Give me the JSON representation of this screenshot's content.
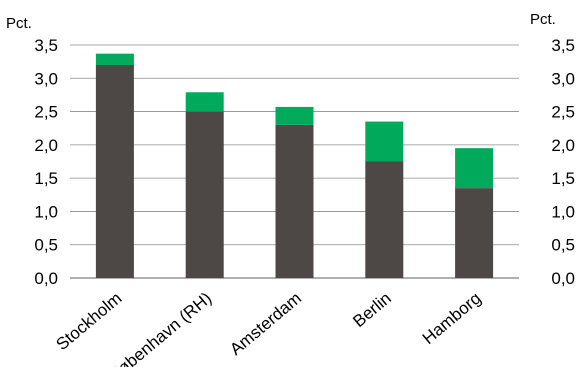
{
  "chart_data": {
    "type": "bar",
    "stacked": true,
    "title": "",
    "xlabel": "",
    "ylabel_left": "Pct.",
    "ylabel_right": "Pct.",
    "ylim": [
      0,
      3.5
    ],
    "yticks": [
      "0,0",
      "0,5",
      "1,0",
      "1,5",
      "2,0",
      "2,5",
      "3,0",
      "3,5"
    ],
    "grid": true,
    "legend": "none",
    "categories": [
      "Stockholm",
      "København (RH)",
      "Amsterdam",
      "Berlin",
      "Hamborg"
    ],
    "series": [
      {
        "values": [
          3.2,
          2.5,
          2.3,
          1.75,
          1.35
        ],
        "color": "#4d4845"
      },
      {
        "values": [
          0.17,
          0.29,
          0.27,
          0.6,
          0.6
        ],
        "color": "#00aa5a"
      }
    ]
  }
}
